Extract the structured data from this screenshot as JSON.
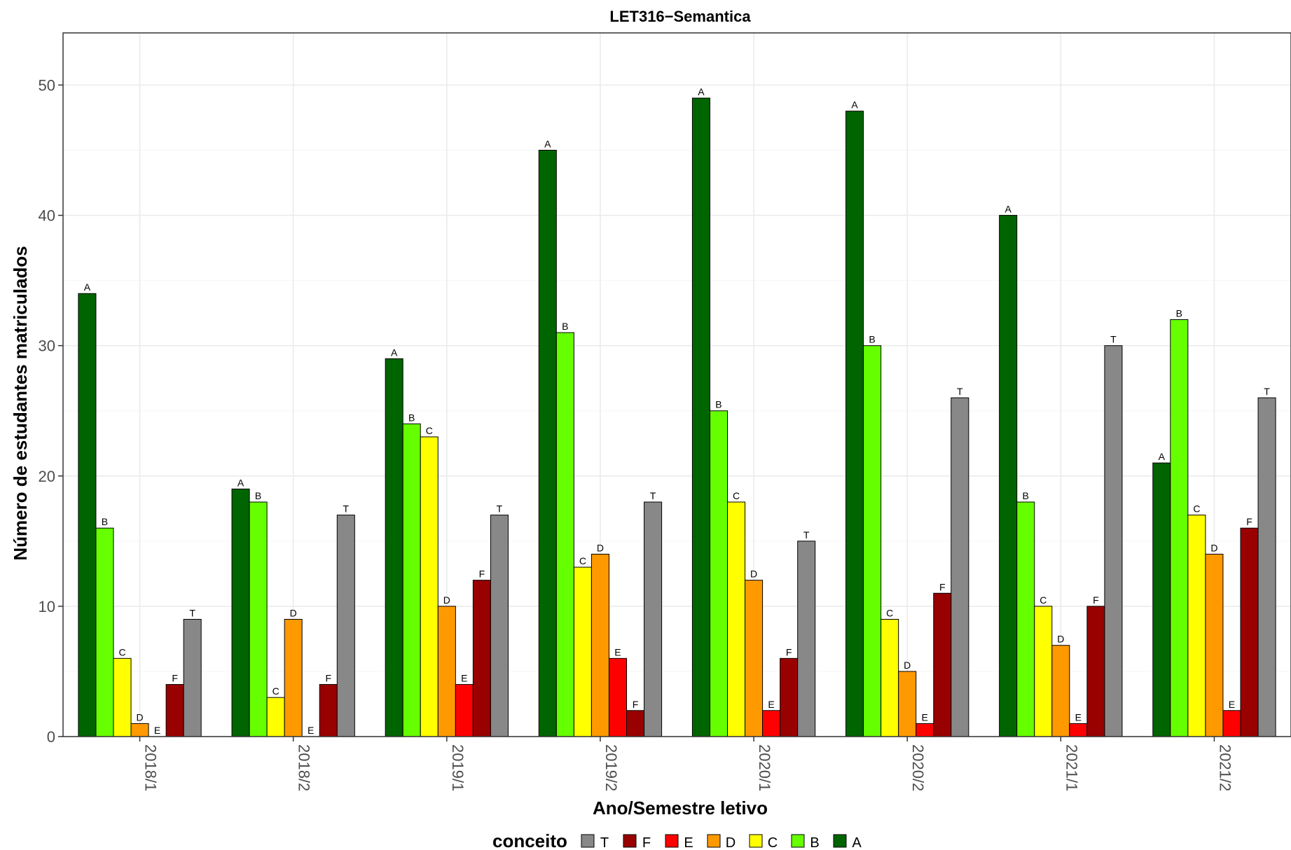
{
  "chart_data": {
    "type": "bar",
    "title": "LET316−Semantica",
    "xlabel": "Ano/Semestre letivo",
    "ylabel": "Número de estudantes matriculados",
    "ylim": [
      0,
      54
    ],
    "yticks": [
      0,
      10,
      20,
      30,
      40,
      50
    ],
    "grid": true,
    "categories": [
      "2018/1",
      "2018/2",
      "2019/1",
      "2019/2",
      "2020/1",
      "2020/2",
      "2021/1",
      "2021/2"
    ],
    "series": [
      {
        "name": "A",
        "color": "#006400",
        "values": [
          34,
          19,
          29,
          45,
          49,
          48,
          40,
          21
        ]
      },
      {
        "name": "B",
        "color": "#66FF00",
        "values": [
          16,
          18,
          24,
          31,
          25,
          30,
          18,
          32
        ]
      },
      {
        "name": "C",
        "color": "#FFFF00",
        "values": [
          6,
          3,
          23,
          13,
          18,
          9,
          10,
          17
        ]
      },
      {
        "name": "D",
        "color": "#FF9900",
        "values": [
          1,
          9,
          10,
          14,
          12,
          5,
          7,
          14
        ]
      },
      {
        "name": "E",
        "color": "#FF0000",
        "values": [
          0,
          0,
          4,
          6,
          2,
          1,
          1,
          2
        ]
      },
      {
        "name": "F",
        "color": "#990000",
        "values": [
          4,
          4,
          12,
          2,
          6,
          11,
          10,
          16
        ]
      },
      {
        "name": "T",
        "color": "#888888",
        "values": [
          9,
          17,
          17,
          18,
          15,
          26,
          30,
          26
        ]
      }
    ],
    "legend": {
      "title": "conceito",
      "position": "bottom",
      "order": [
        "T",
        "F",
        "E",
        "D",
        "C",
        "B",
        "A"
      ]
    }
  }
}
